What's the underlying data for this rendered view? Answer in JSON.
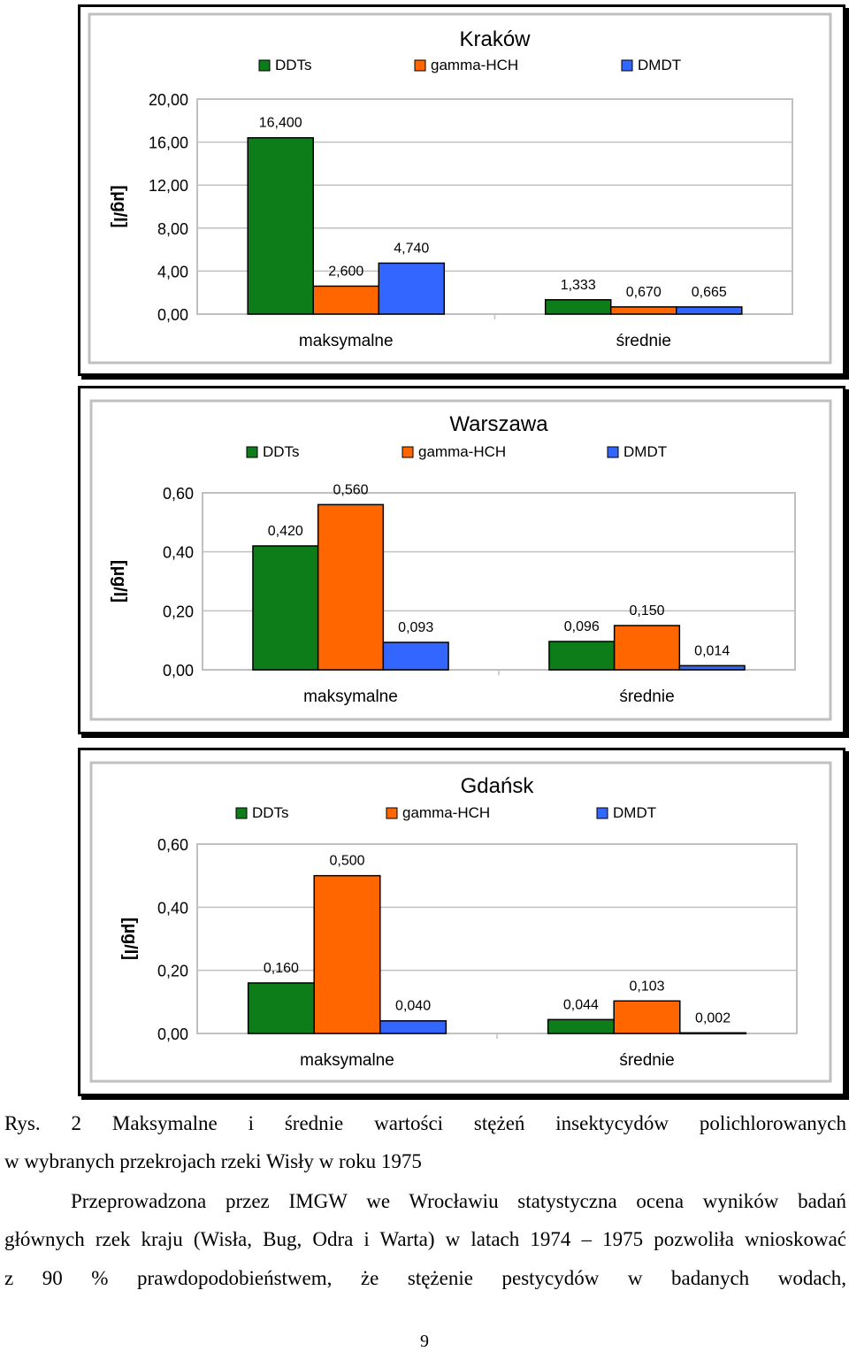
{
  "chart_data": [
    {
      "type": "bar",
      "title": "Kraków",
      "ylabel": "[µg/l]",
      "ylim": [
        0,
        20
      ],
      "yticks": [
        "0,00",
        "4,00",
        "8,00",
        "12,00",
        "16,00",
        "20,00"
      ],
      "categories": [
        "maksymalne",
        "średnie"
      ],
      "series": [
        {
          "name": "DDTs",
          "values": [
            16.4,
            1.333
          ],
          "labels": [
            "16,400",
            "1,333"
          ]
        },
        {
          "name": "gamma-HCH",
          "values": [
            2.6,
            0.67
          ],
          "labels": [
            "2,600",
            "0,670"
          ]
        },
        {
          "name": "DMDT",
          "values": [
            4.74,
            0.665
          ],
          "labels": [
            "4,740",
            "0,665"
          ]
        }
      ],
      "legend": "top",
      "grid": true
    },
    {
      "type": "bar",
      "title": "Warszawa",
      "ylabel": "[µg/l]",
      "ylim": [
        0,
        0.6
      ],
      "yticks": [
        "0,00",
        "0,20",
        "0,40",
        "0,60"
      ],
      "categories": [
        "maksymalne",
        "średnie"
      ],
      "series": [
        {
          "name": "DDTs",
          "values": [
            0.42,
            0.096
          ],
          "labels": [
            "0,420",
            "0,096"
          ]
        },
        {
          "name": "gamma-HCH",
          "values": [
            0.56,
            0.15
          ],
          "labels": [
            "0,560",
            "0,150"
          ]
        },
        {
          "name": "DMDT",
          "values": [
            0.093,
            0.014
          ],
          "labels": [
            "0,093",
            "0,014"
          ]
        }
      ],
      "legend": "top",
      "grid": true
    },
    {
      "type": "bar",
      "title": "Gdańsk",
      "ylabel": "[µg/l]",
      "ylim": [
        0,
        0.6
      ],
      "yticks": [
        "0,00",
        "0,20",
        "0,40",
        "0,60"
      ],
      "categories": [
        "maksymalne",
        "średnie"
      ],
      "series": [
        {
          "name": "DDTs",
          "values": [
            0.16,
            0.044
          ],
          "labels": [
            "0,160",
            "0,044"
          ]
        },
        {
          "name": "gamma-HCH",
          "values": [
            0.5,
            0.103
          ],
          "labels": [
            "0,500",
            "0,103"
          ]
        },
        {
          "name": "DMDT",
          "values": [
            0.04,
            0.002
          ],
          "labels": [
            "0,040",
            "0,002"
          ]
        }
      ],
      "legend": "top",
      "grid": true
    }
  ],
  "colors": {
    "DDTs": "#0d7d1a",
    "gamma-HCH": "#ff6600",
    "DMDT": "#3366ff"
  },
  "text": {
    "caption_line1": "Rys. 2 Maksymalne i średnie wartości stężeń insektycydów polichlorowanych",
    "caption_line2": "w wybranych przekrojach rzeki Wisły w roku 1975",
    "para_line1": "Przeprowadzona przez IMGW we Wrocławiu statystyczna ocena wyników badań",
    "para_line2": "głównych rzek kraju (Wisła, Bug, Odra i Warta) w latach 1974 – 1975 pozwoliła wnioskować",
    "para_line3": "z 90 % prawdopodobieństwem, że stężenie pestycydów w badanych wodach,",
    "page_number": "9"
  }
}
